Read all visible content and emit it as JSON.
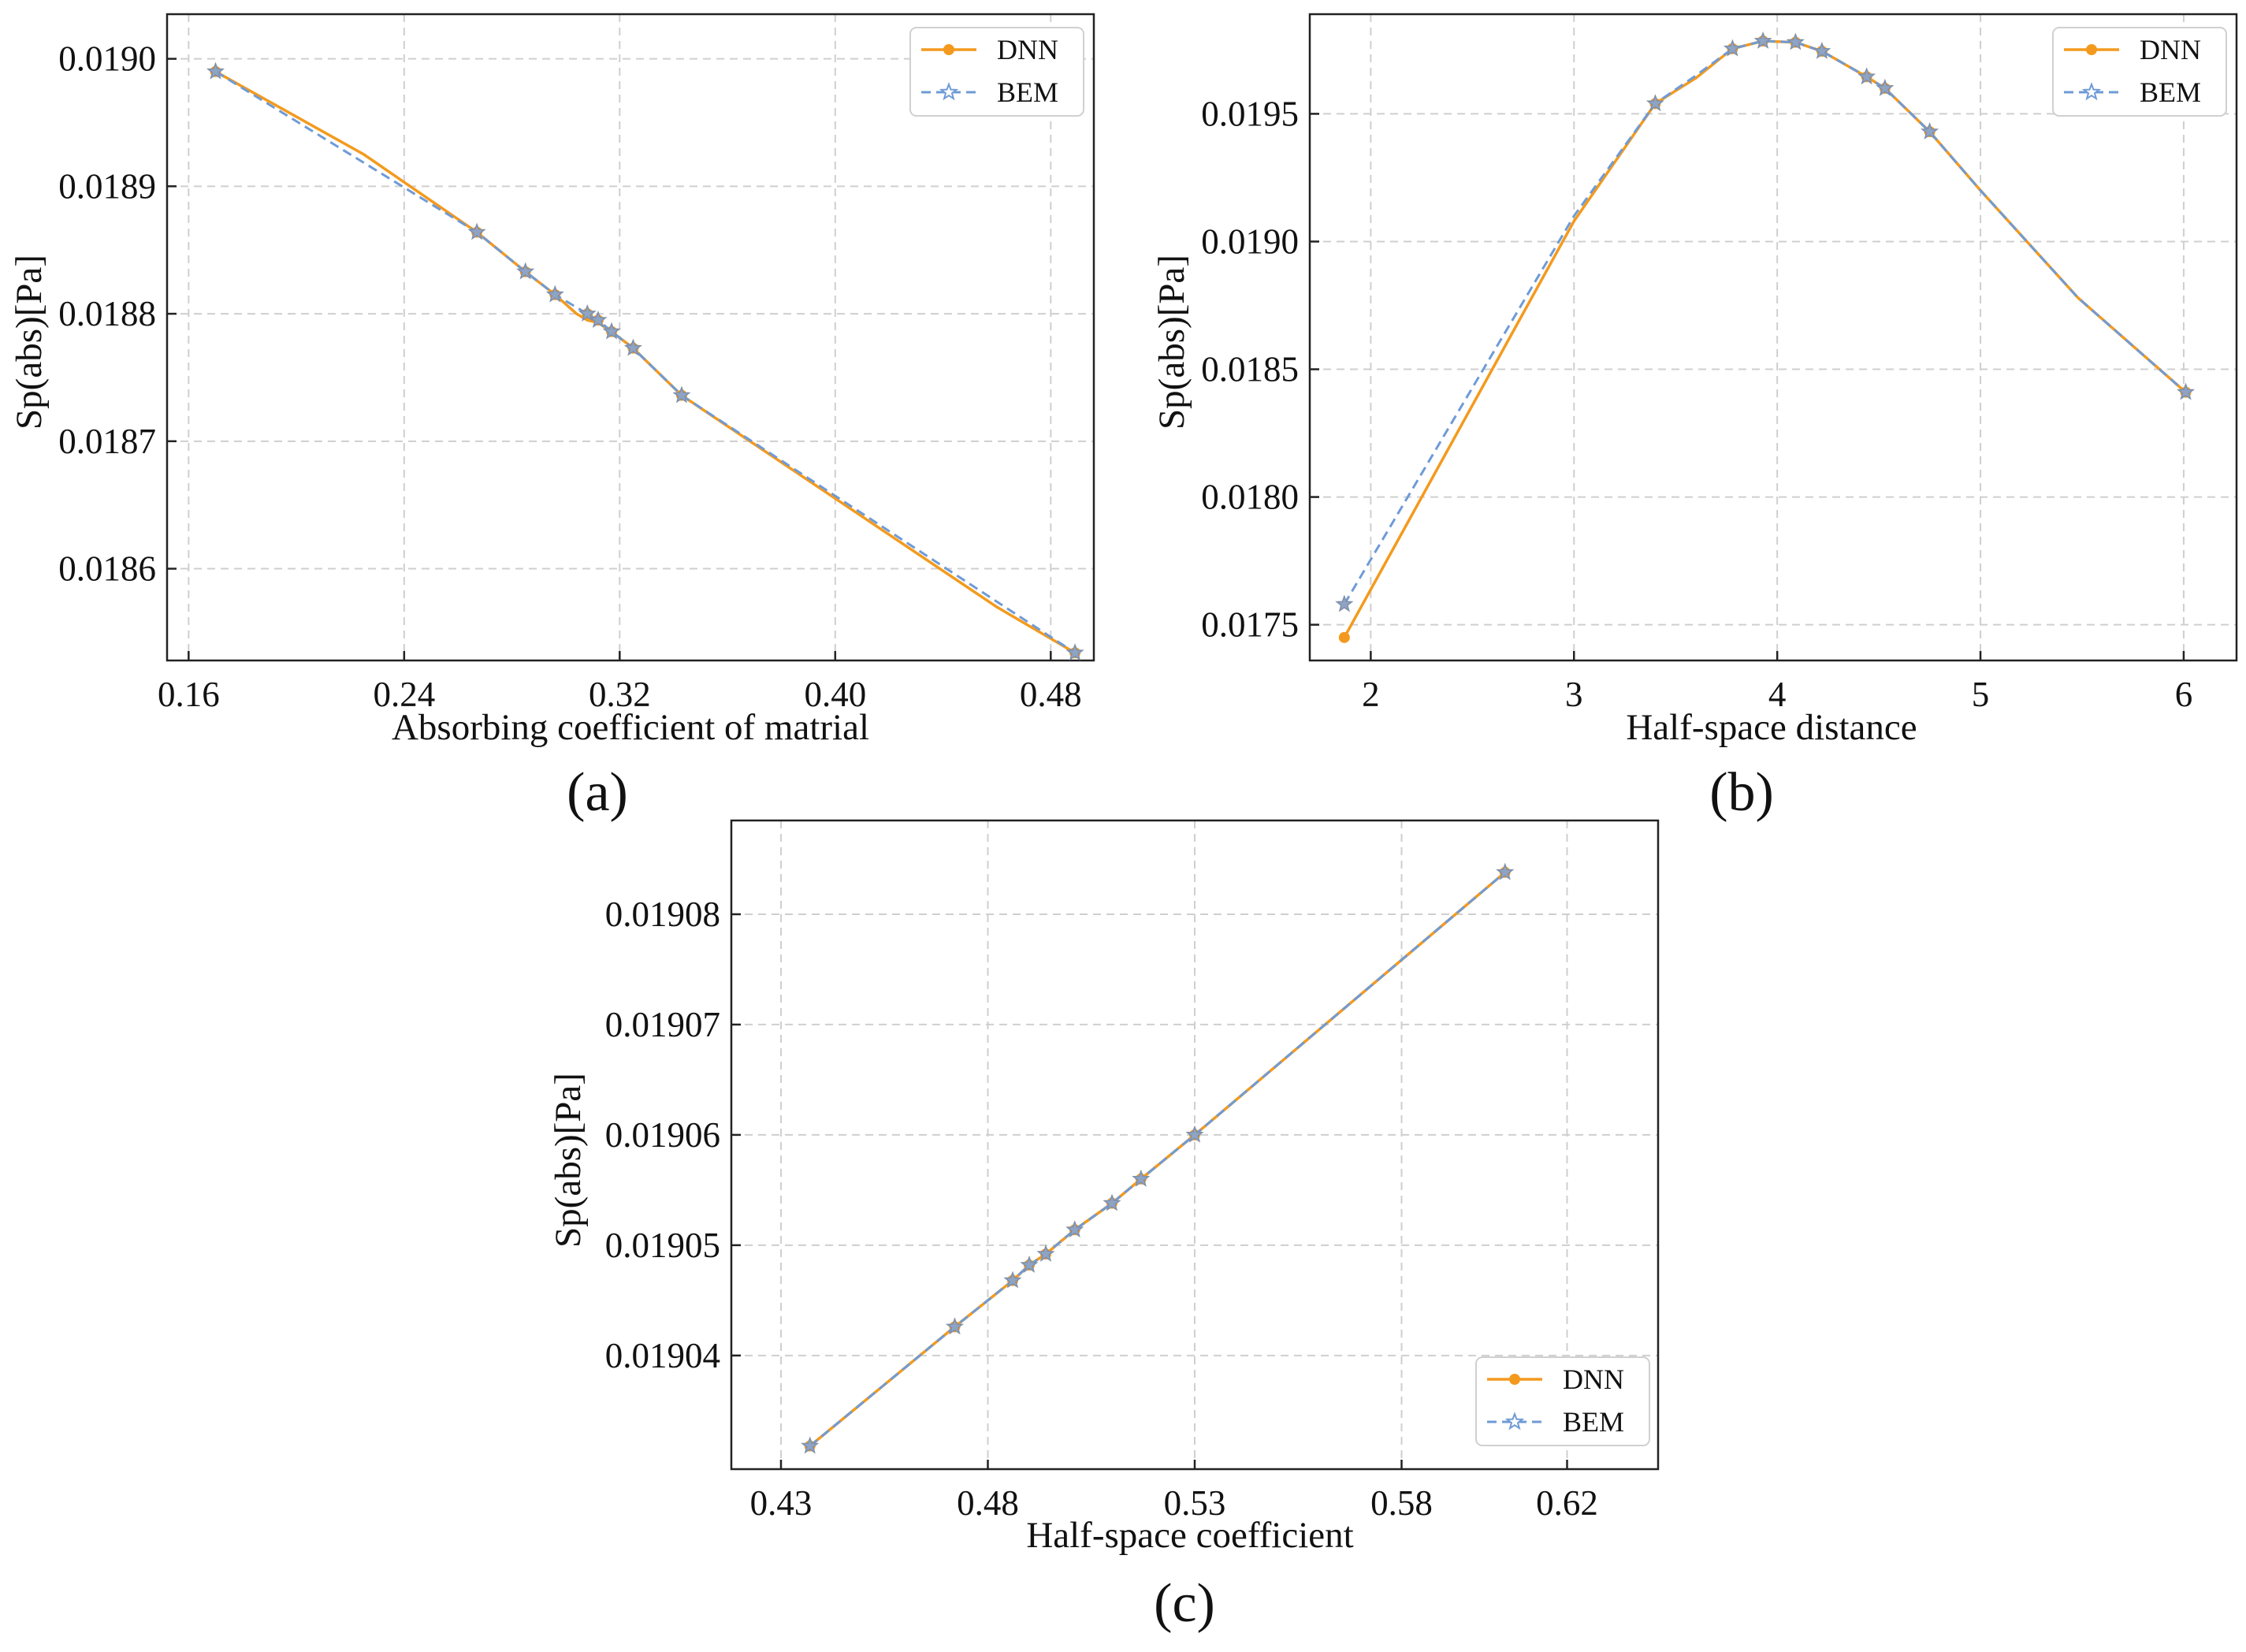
{
  "colors": {
    "dnn": "#f39a1e",
    "bem": "#6f9bd6"
  },
  "chart_data": [
    {
      "panel": "a",
      "type": "line",
      "panel_label": "(a)",
      "xlabel": "Absorbing coefficient of matrial",
      "ylabel": "Sp(abs)[Pa]",
      "xlim": [
        0.152,
        0.496
      ],
      "ylim": [
        0.018528,
        0.019035
      ],
      "xticks": [
        0.16,
        0.24,
        0.32,
        0.4,
        0.48
      ],
      "xtick_labels": [
        "0.16",
        "0.24",
        "0.32",
        "0.40",
        "0.48"
      ],
      "yticks": [
        0.0186,
        0.0187,
        0.0188,
        0.0189,
        0.019
      ],
      "ytick_labels": [
        "0.0186",
        "0.0187",
        "0.0188",
        "0.0189",
        "0.0190"
      ],
      "legend_position": "top-right",
      "series": [
        {
          "name": "DNN",
          "marker": "circle",
          "style": "solid",
          "x": [
            0.17,
            0.225,
            0.267,
            0.285,
            0.296,
            0.304,
            0.308,
            0.312,
            0.317,
            0.325,
            0.343,
            0.46,
            0.489
          ],
          "y": [
            0.01899,
            0.018925,
            0.018864,
            0.018833,
            0.018815,
            0.0188,
            0.018795,
            0.018793,
            0.018786,
            0.018773,
            0.018736,
            0.01857,
            0.018534
          ],
          "marker_x": [
            0.17,
            0.267,
            0.285,
            0.296,
            0.308,
            0.312,
            0.317,
            0.325,
            0.343,
            0.489
          ],
          "marker_y": [
            0.01899,
            0.018864,
            0.018833,
            0.018815,
            0.0188,
            0.018795,
            0.018786,
            0.018773,
            0.018736,
            0.018534
          ]
        },
        {
          "name": "BEM",
          "marker": "star",
          "style": "dashed",
          "x": [
            0.17,
            0.267,
            0.285,
            0.296,
            0.308,
            0.312,
            0.317,
            0.325,
            0.343,
            0.489
          ],
          "y": [
            0.01899,
            0.018864,
            0.018833,
            0.018815,
            0.0188,
            0.018795,
            0.018786,
            0.018773,
            0.018736,
            0.018534
          ]
        }
      ]
    },
    {
      "panel": "b",
      "type": "line",
      "panel_label": "(b)",
      "xlabel": "Half-space distance",
      "ylabel": "Sp(abs)[Pa]",
      "xlim": [
        1.7,
        6.26
      ],
      "ylim": [
        0.01736,
        0.01989
      ],
      "xticks": [
        2,
        3,
        4,
        5,
        6
      ],
      "xtick_labels": [
        "2",
        "3",
        "4",
        "5",
        "6"
      ],
      "yticks": [
        0.0175,
        0.018,
        0.0185,
        0.019,
        0.0195
      ],
      "ytick_labels": [
        "0.0175",
        "0.0180",
        "0.0185",
        "0.0190",
        "0.0195"
      ],
      "legend_position": "top-right",
      "series": [
        {
          "name": "DNN",
          "marker": "circle",
          "style": "solid",
          "x": [
            1.87,
            3.0,
            3.4,
            3.6,
            3.78,
            3.93,
            4.09,
            4.22,
            4.44,
            4.53,
            4.75,
            5.0,
            5.48,
            6.01
          ],
          "y": [
            0.01745,
            0.01908,
            0.01954,
            0.01964,
            0.019755,
            0.019785,
            0.01978,
            0.019745,
            0.019645,
            0.0196,
            0.01943,
            0.0192,
            0.01878,
            0.01841
          ],
          "marker_x": [
            1.87,
            3.4,
            3.78,
            3.93,
            4.09,
            4.22,
            4.44,
            4.53,
            4.75,
            6.01
          ],
          "marker_y": [
            0.01745,
            0.01954,
            0.019755,
            0.019785,
            0.01978,
            0.019745,
            0.019645,
            0.0196,
            0.01943,
            0.01841
          ]
        },
        {
          "name": "BEM",
          "marker": "star",
          "style": "dashed",
          "x": [
            1.87,
            3.0,
            3.4,
            3.6,
            3.78,
            3.93,
            4.09,
            4.22,
            4.44,
            4.53,
            4.75,
            5.0,
            5.48,
            6.01
          ],
          "y": [
            0.01758,
            0.0191,
            0.01954,
            0.01965,
            0.019755,
            0.019785,
            0.01978,
            0.019745,
            0.019645,
            0.0196,
            0.01943,
            0.0192,
            0.01878,
            0.01841
          ],
          "marker_x": [
            1.87,
            3.4,
            3.78,
            3.93,
            4.09,
            4.22,
            4.44,
            4.53,
            4.75,
            6.01
          ],
          "marker_y": [
            0.01758,
            0.01954,
            0.019755,
            0.019785,
            0.01978,
            0.019745,
            0.019645,
            0.0196,
            0.01943,
            0.01841
          ]
        }
      ]
    },
    {
      "panel": "c",
      "type": "line",
      "panel_label": "(c)",
      "xlabel": "Half-space coefficient",
      "ylabel": "Sp(abs)[Pa]",
      "xlim": [
        0.418,
        0.642
      ],
      "ylim": [
        0.0190297,
        0.0190885
      ],
      "xticks": [
        0.43,
        0.48,
        0.53,
        0.58,
        0.62
      ],
      "xtick_labels": [
        "0.43",
        "0.48",
        "0.53",
        "0.58",
        "0.62"
      ],
      "yticks": [
        0.01904,
        0.01905,
        0.01906,
        0.01907,
        0.01908
      ],
      "ytick_labels": [
        "0.01904",
        "0.01905",
        "0.01906",
        "0.01907",
        "0.01908"
      ],
      "legend_position": "bottom-right",
      "series": [
        {
          "name": "DNN",
          "marker": "circle",
          "style": "solid",
          "x": [
            0.437,
            0.472,
            0.486,
            0.49,
            0.494,
            0.501,
            0.51,
            0.517,
            0.53,
            0.605
          ],
          "y": [
            0.0190318,
            0.0190426,
            0.0190468,
            0.0190482,
            0.0190492,
            0.0190514,
            0.0190538,
            0.019056,
            0.01906,
            0.0190838
          ]
        },
        {
          "name": "BEM",
          "marker": "star",
          "style": "dashed",
          "x": [
            0.437,
            0.472,
            0.486,
            0.49,
            0.494,
            0.501,
            0.51,
            0.517,
            0.53,
            0.605
          ],
          "y": [
            0.0190318,
            0.0190426,
            0.0190468,
            0.0190482,
            0.0190492,
            0.0190514,
            0.0190538,
            0.019056,
            0.01906,
            0.0190838
          ]
        }
      ]
    }
  ]
}
